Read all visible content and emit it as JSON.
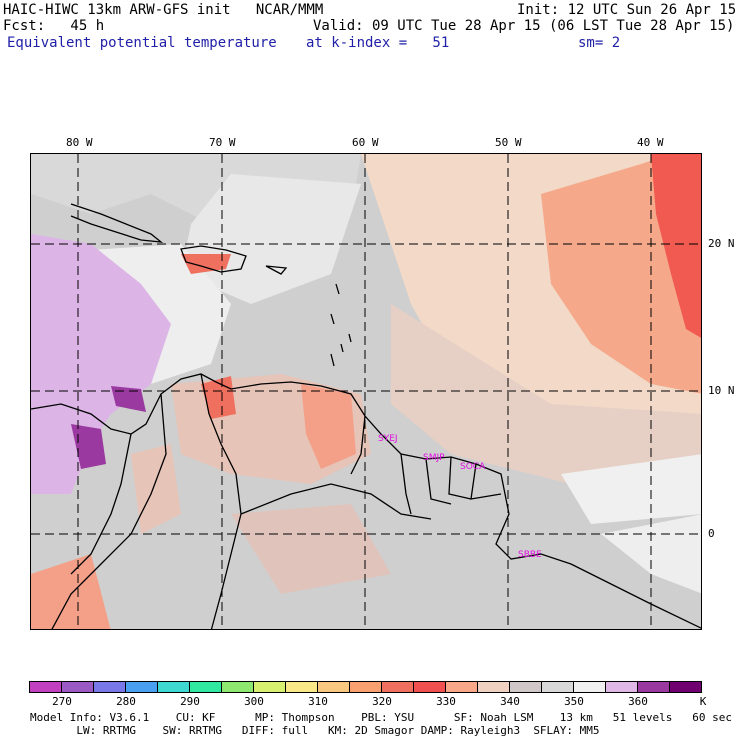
{
  "header": {
    "title": "HAIC-HIWC 13km ARW-GFS init   NCAR/MMM",
    "init": "Init: 12 UTC Sun 26 Apr 15",
    "fcst": "Fcst:   45 h",
    "valid": "Valid: 09 UTC Tue 28 Apr 15 (06 LST Tue 28 Apr 15)",
    "field": "Equivalent potential temperature",
    "level": "at k-index =   51",
    "smooth": "sm= 2"
  },
  "map": {
    "lon_labels": [
      "80 W",
      "70 W",
      "60 W",
      "50 W",
      "40 W"
    ],
    "lat_labels": [
      "20 N",
      "10 N",
      "0"
    ],
    "stations": [
      "SYEJ",
      "SMJP",
      "SOCA",
      "SBBE"
    ]
  },
  "colorbar": {
    "colors": [
      "#c040c0",
      "#9b59c4",
      "#7878e8",
      "#4aa0f0",
      "#3fd8d0",
      "#30e8a0",
      "#8ee870",
      "#d8f070",
      "#f8e888",
      "#f8c880",
      "#f8a070",
      "#f07060",
      "#f05050",
      "#f8a888",
      "#f0d0c0",
      "#d0c8c8",
      "#d8d8d8",
      "#f0f0f0",
      "#e0b8e8",
      "#9a3aa0",
      "#700070"
    ],
    "labels": [
      "270",
      "280",
      "290",
      "300",
      "310",
      "320",
      "330",
      "340",
      "350",
      "360"
    ],
    "unit": "K"
  },
  "footer": {
    "line1": "Model Info: V3.6.1    CU: KF      MP: Thompson    PBL: YSU      SF: Noah LSM    13 km   51 levels   60 sec",
    "line2": "       LW: RRTMG    SW: RRTMG   DIFF: full   KM: 2D Smagor DAMP: Rayleigh3  SFLAY: MM5"
  }
}
